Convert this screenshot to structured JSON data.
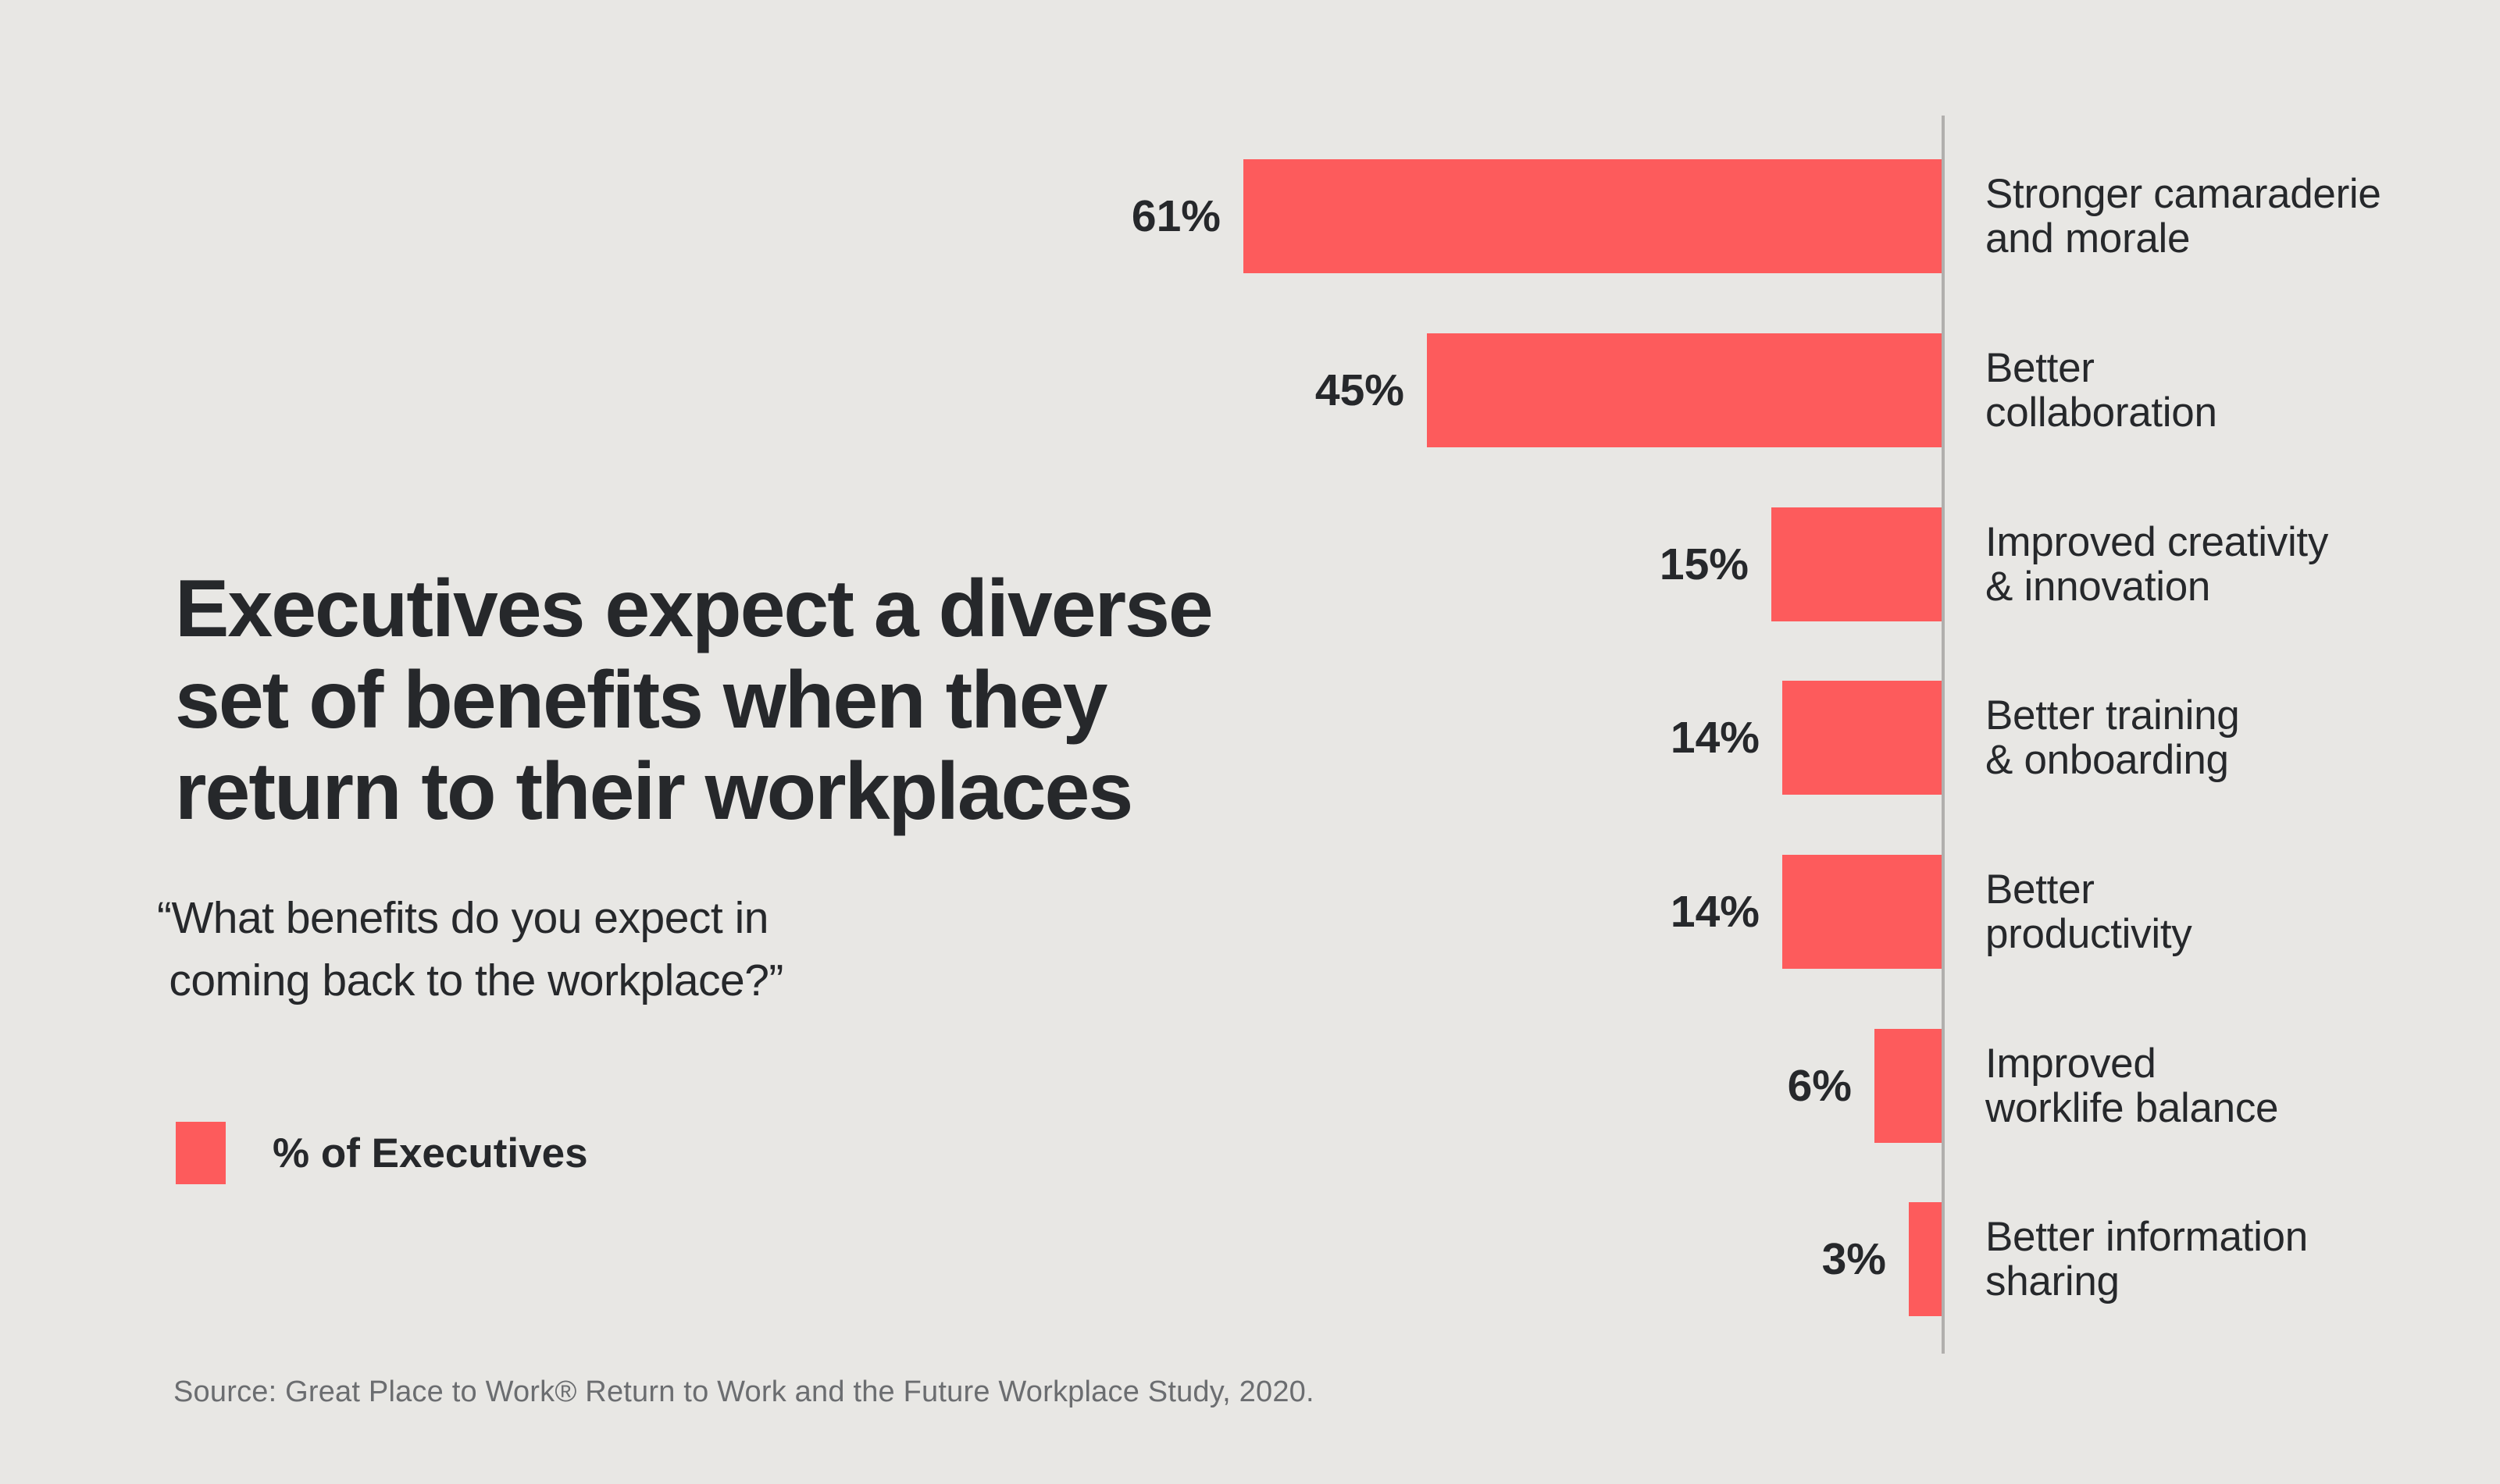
{
  "chart_data": {
    "type": "bar",
    "orientation": "horizontal",
    "title": "Executives expect a diverse\nset of benefits when they\nreturn to their workplaces",
    "subtitle": "“What benefits do you expect in\n coming back to the workplace?”",
    "legend": {
      "label": "% of Executives",
      "position": "left-middle"
    },
    "source": "Source: Great Place to Work® Return to Work and the Future Workplace Study, 2020.",
    "unit": "%",
    "xlim": [
      0,
      61
    ],
    "grid": false,
    "categories": [
      "Stronger camaraderie and morale",
      "Better collaboration",
      "Improved creativity & innovation",
      "Better training & onboarding",
      "Better productivity",
      "Improved worklife balance",
      "Better information sharing"
    ],
    "category_lines": [
      "Stronger camaraderie\nand morale",
      "Better\ncollaboration",
      "Improved creativity\n& innovation",
      "Better training\n& onboarding",
      "Better\nproductivity",
      "Improved\nworklife balance",
      "Better information\nsharing"
    ],
    "series": [
      {
        "name": "% of Executives",
        "values": [
          61,
          45,
          15,
          14,
          14,
          6,
          3
        ]
      }
    ],
    "value_labels": [
      "61%",
      "45%",
      "15%",
      "14%",
      "14%",
      "6%",
      "3%"
    ],
    "colors": {
      "bar": "#fd5b5c",
      "background": "#e8e7e4",
      "text_dark": "#26282b",
      "axis_line": "#b1afad",
      "source_text": "#6b6d70"
    }
  }
}
